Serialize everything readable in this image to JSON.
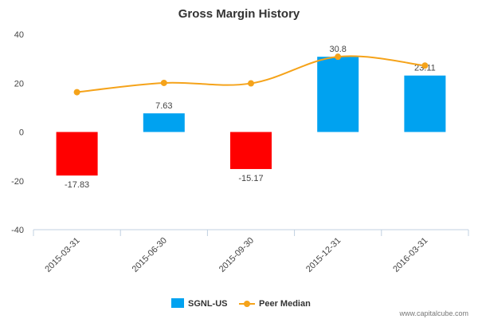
{
  "chart_data": {
    "type": "bar",
    "title": "Gross Margin History",
    "categories": [
      "2015-03-31",
      "2015-06-30",
      "2015-09-30",
      "2015-12-31",
      "2016-03-31"
    ],
    "ylim": [
      -40,
      40
    ],
    "yticks": [
      -40,
      -20,
      0,
      20,
      40
    ],
    "series": [
      {
        "name": "SGNL-US",
        "type": "bar",
        "values": [
          -17.83,
          7.63,
          -15.17,
          30.8,
          23.11
        ],
        "labels": [
          "-17.83",
          "7.63",
          "-15.17",
          "30.8",
          "23.11"
        ],
        "positive_color": "#00a2f0",
        "negative_color": "#ff0000"
      },
      {
        "name": "Peer Median",
        "type": "line",
        "values": [
          16.3,
          20.1,
          19.9,
          30.8,
          27.2
        ],
        "color": "#f5a31a"
      }
    ],
    "legend_position": "bottom-center",
    "grid": false
  },
  "credit": "www.capitalcube.com"
}
